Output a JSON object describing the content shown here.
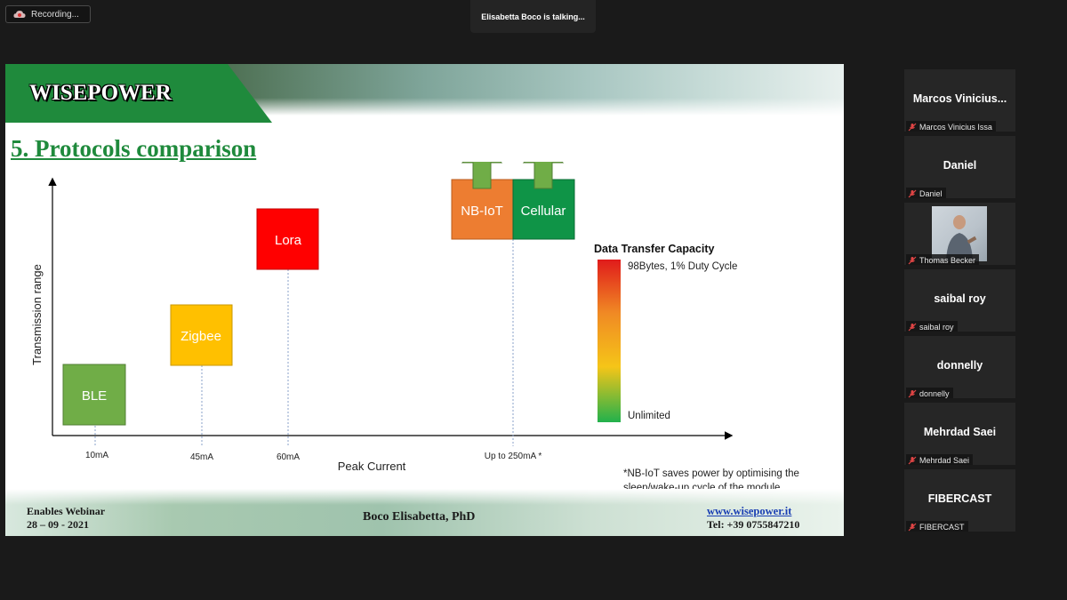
{
  "recording": {
    "label": "Recording..."
  },
  "speaker_banner": {
    "text": "Elisabetta Boco is talking..."
  },
  "slide": {
    "logo": "WISEPOWER",
    "title": "5. Protocols comparison",
    "footer": {
      "event": "Enables Webinar",
      "date": "28 – 09 - 2021",
      "presenter": "Boco Elisabetta, PhD",
      "website": "www.wisepower.it",
      "phone": "Tel: +39 0755847210"
    },
    "note": "*NB-IoT saves power by optimising the sleep/wake-up cycle of the module"
  },
  "chart_data": {
    "type": "diagram",
    "xlabel": "Peak Current",
    "ylabel": "Transmission range",
    "x_ticks": [
      "10mA",
      "45mA",
      "60mA",
      "Up to 250mA *"
    ],
    "protocols": [
      {
        "name": "BLE",
        "peak_current": "10mA",
        "color": "#70ad47"
      },
      {
        "name": "Zigbee",
        "peak_current": "45mA",
        "color": "#ffc000"
      },
      {
        "name": "Lora",
        "peak_current": "60mA",
        "color": "#ff0000"
      },
      {
        "name": "NB-IoT",
        "peak_current": "Up to 250mA *",
        "color": "#ed7d31"
      },
      {
        "name": "Cellular",
        "peak_current": "Up to 250mA *",
        "color": "#0f9447"
      }
    ],
    "capacity_legend": {
      "title": "Data Transfer Capacity",
      "top_label": "98Bytes, 1% Duty Cycle",
      "bottom_label": "Unlimited",
      "colors": [
        "#e01b1b",
        "#f08a24",
        "#f5c518",
        "#22b14c"
      ]
    }
  },
  "participants": [
    {
      "display": "Marcos  Vinicius...",
      "label": "Marcos Vinicius Issa",
      "video": false
    },
    {
      "display": "Daniel",
      "label": "Daniel",
      "video": false
    },
    {
      "display": "",
      "label": "Thomas Becker",
      "video": true
    },
    {
      "display": "saibal roy",
      "label": "saibal roy",
      "video": false
    },
    {
      "display": "donnelly",
      "label": "donnelly",
      "video": false
    },
    {
      "display": "Mehrdad Saei",
      "label": "Mehrdad Saei",
      "video": false
    },
    {
      "display": "FIBERCAST",
      "label": "FIBERCAST",
      "video": false
    }
  ],
  "icons": {
    "recording": "cloud-record-icon",
    "mic": "mic-muted-icon",
    "arrow": "up-arrow-icon"
  }
}
